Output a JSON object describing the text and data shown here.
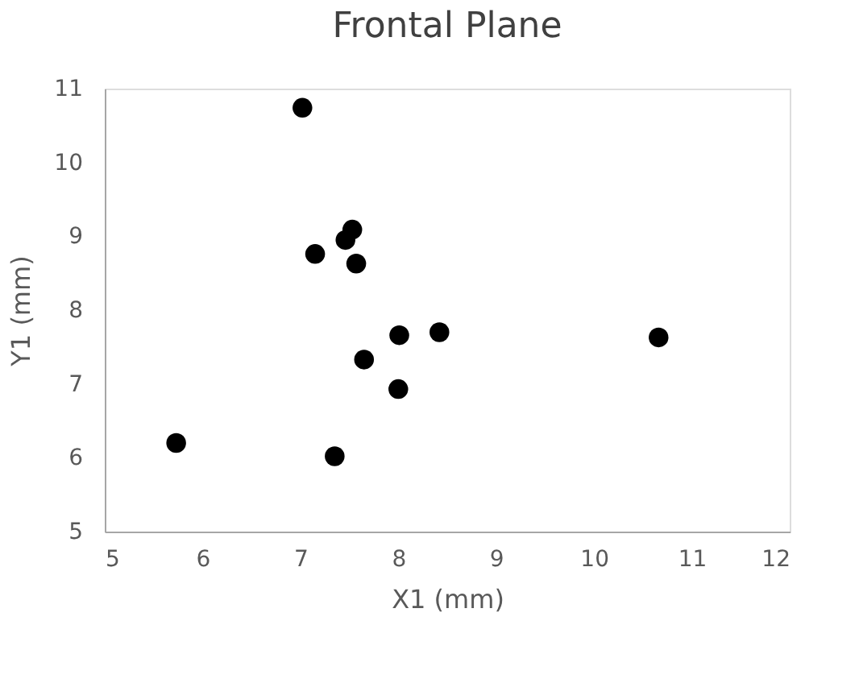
{
  "chart_data": {
    "type": "scatter",
    "title": "Frontal Plane",
    "xlabel": "X1 (mm)",
    "ylabel": "Y1 (mm)",
    "x": [
      7.02,
      7.53,
      7.46,
      7.15,
      7.57,
      8.01,
      8.42,
      7.65,
      8.0,
      5.73,
      7.35,
      10.66
    ],
    "series": [
      {
        "color": "#000000",
        "values": [
          10.74,
          9.09,
          8.95,
          8.76,
          8.63,
          7.66,
          7.7,
          7.33,
          6.93,
          6.2,
          6.02,
          7.63
        ]
      }
    ],
    "xlim": [
      5,
      12
    ],
    "xticks": [
      5,
      6,
      7,
      8,
      9,
      10,
      11,
      12
    ],
    "ylim": [
      5,
      11
    ],
    "yticks": [
      5,
      6,
      7,
      8,
      9,
      10,
      11
    ],
    "grid": false,
    "legend": false,
    "marker": "circle"
  }
}
